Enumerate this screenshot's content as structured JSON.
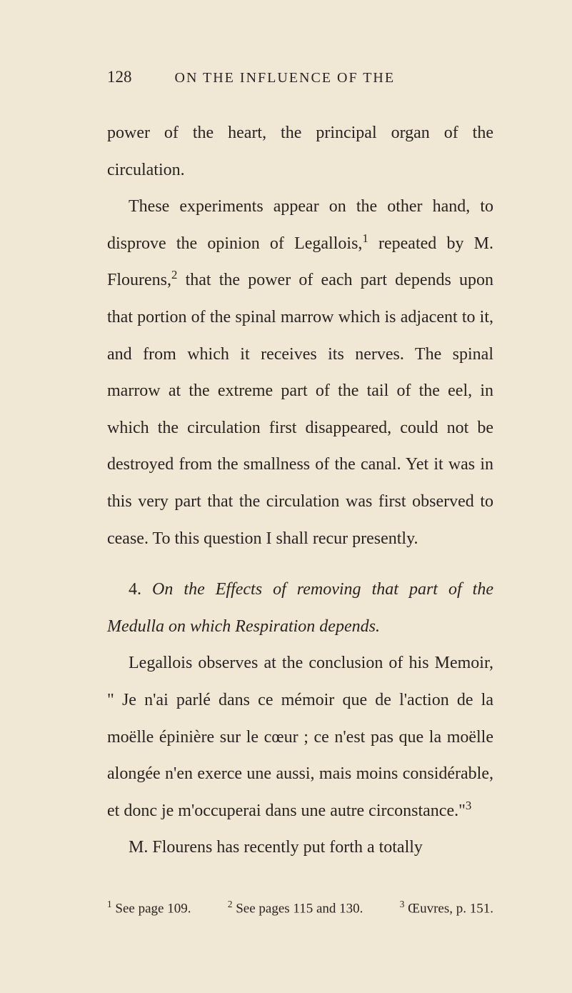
{
  "page": {
    "number": "128",
    "running_title": "ON THE INFLUENCE OF THE"
  },
  "paragraphs": {
    "p1": "power of the heart, the principal organ of the circulation.",
    "p2_a": "These experiments appear on the other hand, to disprove the opinion of Legallois,",
    "p2_sup1": "1",
    "p2_b": " repeated by M. Flourens,",
    "p2_sup2": "2",
    "p2_c": " that the power of each part depends upon that portion of the spinal marrow which is adjacent to it, and from which it receives its nerves. The spinal marrow at the extreme part of the tail of the eel, in which the circulation first disappeared, could not be destroyed from the smallness of the canal. Yet it was in this very part that the circulation was first observed to cease. To this question I shall recur presently.",
    "section_num": "4. ",
    "section_italic": "On the Effects of removing that part of the Medulla on which Respiration depends.",
    "p3_a": "Legallois observes at the conclusion of his Memoir, \" Je n'ai parlé dans ce mémoir que de l'action de la moëlle épinière sur le cœur ; ce n'est pas que la moëlle alongée n'en exerce une aussi, mais moins considérable, et donc je m'occuperai dans une autre circonstance.\"",
    "p3_sup": "3",
    "p4": "M. Flourens has recently put forth a totally"
  },
  "footnotes": {
    "f1_sup": "1",
    "f1_text": " See page 109.",
    "f2_sup": "2",
    "f2_text": " See pages 115 and 130.",
    "f3_sup": "3",
    "f3_text": " Œuvres, p. 151."
  },
  "colors": {
    "background": "#f0e8d4",
    "text": "#2a2420"
  },
  "typography": {
    "body_fontsize": 24,
    "header_fontsize": 23,
    "footnote_fontsize": 19,
    "line_height": 2.15,
    "font_family": "Times New Roman"
  }
}
